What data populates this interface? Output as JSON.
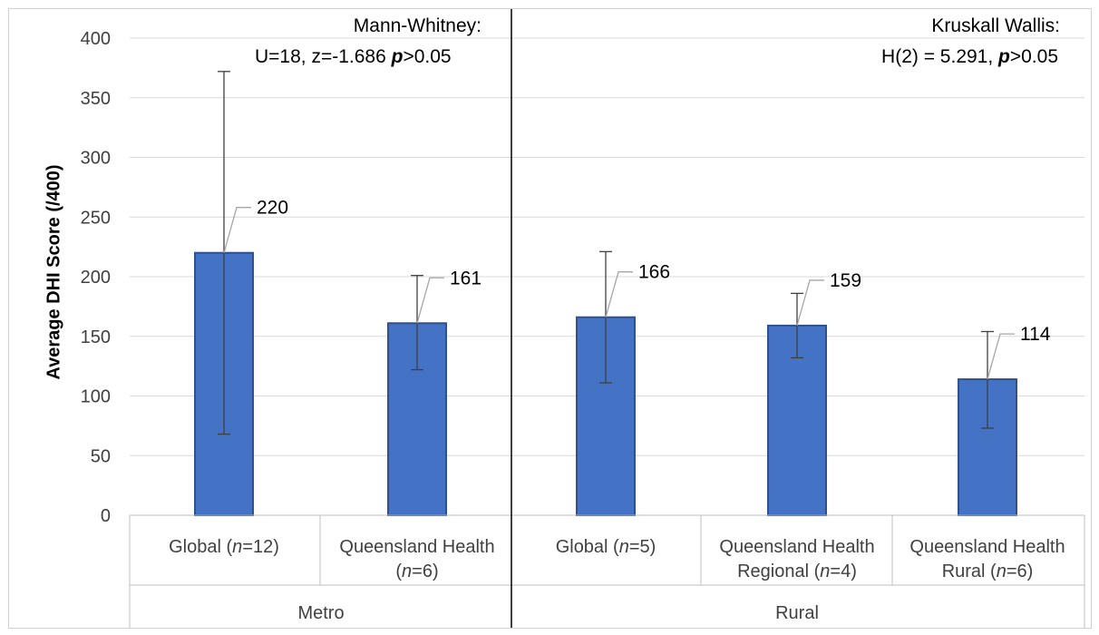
{
  "chart_data": {
    "type": "bar",
    "ylabel": "Average DHI Score (/400)",
    "ylim": [
      0,
      400
    ],
    "yticks": [
      0,
      50,
      100,
      150,
      200,
      250,
      300,
      350,
      400
    ],
    "grid": true,
    "bar_color": "#4472C4",
    "groups": [
      "Metro",
      "Rural"
    ],
    "categories": [
      {
        "group": "Metro",
        "name": "Global",
        "n_label": "n",
        "n_value": "=12",
        "line2": ""
      },
      {
        "group": "Metro",
        "name": "Queensland Health",
        "n_label": "n",
        "n_value": "=6",
        "line2": "split"
      },
      {
        "group": "Rural",
        "name": "Global",
        "n_label": "n",
        "n_value": "=5",
        "line2": ""
      },
      {
        "group": "Rural",
        "name": "Queensland Health Regional",
        "n_label": "n",
        "n_value": "=4",
        "line2": "split"
      },
      {
        "group": "Rural",
        "name": "Queensland Health Rural",
        "n_label": "n",
        "n_value": "=6",
        "line2": "split"
      }
    ],
    "values": [
      220,
      161,
      166,
      159,
      114
    ],
    "error_low": [
      68,
      122,
      111,
      132,
      73
    ],
    "error_high": [
      372,
      201,
      221,
      186,
      154
    ],
    "data_labels": [
      "220",
      "161",
      "166",
      "159",
      "114"
    ],
    "annotations": [
      {
        "group": "Metro",
        "line1": "Mann-Whitney:",
        "line2_pre": "U=18, z=-1.686 ",
        "p": "p",
        "line2_post": ">0.05"
      },
      {
        "group": "Rural",
        "line1": "Kruskall Wallis:",
        "line2_pre": "H(2) = 5.291, ",
        "p": "p",
        "line2_post": ">0.05"
      }
    ]
  }
}
